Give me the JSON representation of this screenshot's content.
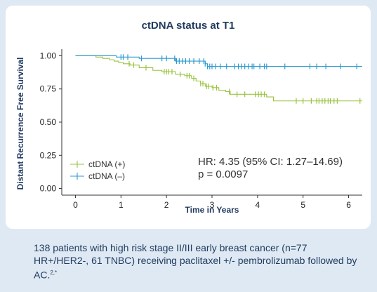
{
  "chart_data": {
    "type": "line",
    "title": "ctDNA status at T1",
    "xlabel": "Time in Years",
    "ylabel": "Distant Recurrence Free Survival",
    "xlim": [
      -0.3,
      6.3
    ],
    "ylim": [
      -0.05,
      1.05
    ],
    "x_ticks": [
      0,
      1,
      2,
      3,
      4,
      5,
      6
    ],
    "y_ticks": [
      0.0,
      0.25,
      0.5,
      0.75,
      1.0
    ],
    "y_tick_labels": [
      "0.00",
      "0.25",
      "0.50",
      "0.75",
      "1.00"
    ],
    "legend_position": "bottom-left",
    "grid": false,
    "series": [
      {
        "name": "ctDNA (+)",
        "color": "#9ac341",
        "steps": [
          [
            0,
            1.0
          ],
          [
            0.45,
            0.99
          ],
          [
            0.6,
            0.98
          ],
          [
            0.75,
            0.97
          ],
          [
            0.85,
            0.96
          ],
          [
            0.95,
            0.95
          ],
          [
            1.05,
            0.94
          ],
          [
            1.2,
            0.93
          ],
          [
            1.4,
            0.91
          ],
          [
            1.7,
            0.89
          ],
          [
            1.9,
            0.88
          ],
          [
            2.2,
            0.86
          ],
          [
            2.4,
            0.85
          ],
          [
            2.55,
            0.83
          ],
          [
            2.65,
            0.81
          ],
          [
            2.75,
            0.79
          ],
          [
            2.85,
            0.77
          ],
          [
            3.0,
            0.76
          ],
          [
            3.15,
            0.74
          ],
          [
            3.3,
            0.73
          ],
          [
            3.4,
            0.71
          ],
          [
            4.2,
            0.69
          ],
          [
            4.35,
            0.66
          ],
          [
            6.3,
            0.66
          ]
        ],
        "censor_x": [
          1.18,
          1.28,
          1.55,
          1.95,
          2.0,
          2.05,
          2.12,
          2.3,
          2.45,
          2.5,
          2.6,
          2.75,
          2.8,
          2.88,
          2.92,
          3.02,
          3.1,
          3.38,
          3.55,
          3.72,
          3.95,
          4.02,
          4.08,
          4.15,
          4.85,
          5.0,
          5.18,
          5.3,
          5.35,
          5.42,
          5.48,
          5.55,
          5.6,
          5.68,
          5.75,
          6.25
        ]
      },
      {
        "name": "ctDNA (–)",
        "color": "#2d9ad2",
        "steps": [
          [
            0,
            1.0
          ],
          [
            0.9,
            0.99
          ],
          [
            1.4,
            0.98
          ],
          [
            2.2,
            0.96
          ],
          [
            2.85,
            0.94
          ],
          [
            2.9,
            0.92
          ],
          [
            6.3,
            0.92
          ]
        ],
        "censor_x": [
          1.0,
          1.05,
          1.15,
          1.45,
          1.9,
          2.0,
          2.18,
          2.22,
          2.28,
          2.35,
          2.42,
          2.5,
          2.6,
          2.72,
          2.82,
          2.85,
          2.9,
          2.95,
          3.0,
          3.08,
          3.18,
          3.32,
          3.5,
          3.58,
          3.65,
          3.72,
          3.8,
          3.88,
          3.92,
          4.05,
          4.15,
          4.2,
          4.6,
          5.15,
          5.3,
          5.5,
          5.82,
          6.18
        ]
      }
    ],
    "annotations": {
      "hr": "HR: 4.35 (95% CI: 1.27–14.69)",
      "p": "p = 0.0097"
    }
  },
  "caption": {
    "text": "138 patients with high risk stage II/III early breast cancer (n=77 HR+/HER2-, 61 TNBC) receiving paclitaxel +/- pembrolizumab followed by AC.",
    "superscript": "2,*"
  }
}
